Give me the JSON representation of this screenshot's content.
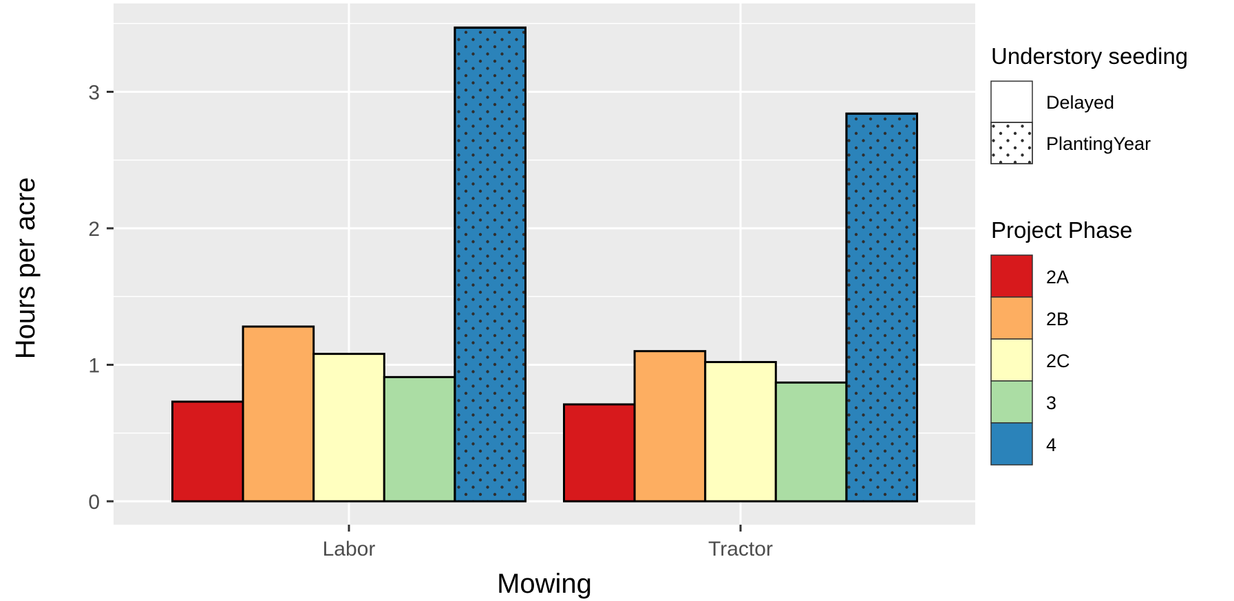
{
  "chart_data": {
    "type": "bar",
    "categories": [
      "Labor",
      "Tractor"
    ],
    "xlabel": "Mowing",
    "ylabel": "Hours per acre",
    "ylim": [
      0,
      3.5
    ],
    "yticks": [
      0,
      1,
      2,
      3
    ],
    "grid": true,
    "legend_placement": "right",
    "series": [
      {
        "name": "2A",
        "values": [
          0.73,
          0.71
        ],
        "color": "#d7191c",
        "pattern": "Delayed"
      },
      {
        "name": "2B",
        "values": [
          1.28,
          1.1
        ],
        "color": "#fdae61",
        "pattern": "Delayed"
      },
      {
        "name": "2C",
        "values": [
          1.08,
          1.02
        ],
        "color": "#ffffbf",
        "pattern": "Delayed"
      },
      {
        "name": "3",
        "values": [
          0.91,
          0.87
        ],
        "color": "#abdda4",
        "pattern": "Delayed"
      },
      {
        "name": "4",
        "values": [
          3.47,
          2.84
        ],
        "color": "#2b83ba",
        "pattern": "PlantingYear"
      }
    ],
    "legends": {
      "pattern": {
        "title": "Understory seeding",
        "items": [
          {
            "label": "Delayed",
            "pattern": "none"
          },
          {
            "label": "PlantingYear",
            "pattern": "dots"
          }
        ]
      },
      "fill": {
        "title": "Project Phase",
        "items": [
          "2A",
          "2B",
          "2C",
          "3",
          "4"
        ]
      }
    }
  }
}
